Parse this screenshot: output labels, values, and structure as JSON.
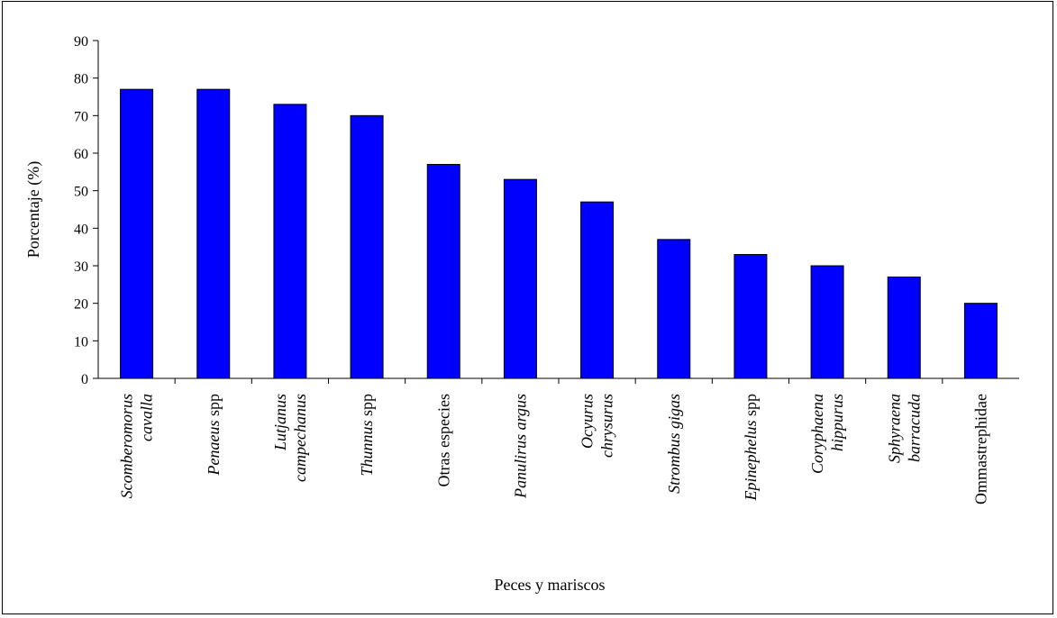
{
  "chart_data": {
    "type": "bar",
    "categories": [
      {
        "lines": [
          {
            "parts": [
              {
                "text": "Scomberomorus",
                "italic": true
              }
            ]
          },
          {
            "parts": [
              {
                "text": "cavalla",
                "italic": true
              }
            ]
          }
        ]
      },
      {
        "lines": [
          {
            "parts": [
              {
                "text": "Penaeus",
                "italic": true
              },
              {
                "text": " spp",
                "italic": false
              }
            ]
          }
        ]
      },
      {
        "lines": [
          {
            "parts": [
              {
                "text": "Lutjanus",
                "italic": true
              }
            ]
          },
          {
            "parts": [
              {
                "text": "campechanus",
                "italic": true
              }
            ]
          }
        ]
      },
      {
        "lines": [
          {
            "parts": [
              {
                "text": "Thunnus",
                "italic": true
              },
              {
                "text": " spp",
                "italic": false
              }
            ]
          }
        ]
      },
      {
        "lines": [
          {
            "parts": [
              {
                "text": "Otras especies",
                "italic": false
              }
            ]
          }
        ]
      },
      {
        "lines": [
          {
            "parts": [
              {
                "text": "Panulirus argus",
                "italic": true
              }
            ]
          }
        ]
      },
      {
        "lines": [
          {
            "parts": [
              {
                "text": "Ocyurus",
                "italic": true
              }
            ]
          },
          {
            "parts": [
              {
                "text": "chrysurus",
                "italic": true
              }
            ]
          }
        ]
      },
      {
        "lines": [
          {
            "parts": [
              {
                "text": "Strombus gigas",
                "italic": true
              }
            ]
          }
        ]
      },
      {
        "lines": [
          {
            "parts": [
              {
                "text": "Epinephelus",
                "italic": true
              },
              {
                "text": " spp",
                "italic": false
              }
            ]
          }
        ]
      },
      {
        "lines": [
          {
            "parts": [
              {
                "text": "Coryphaena",
                "italic": true
              }
            ]
          },
          {
            "parts": [
              {
                "text": "hippurus",
                "italic": true
              }
            ]
          }
        ]
      },
      {
        "lines": [
          {
            "parts": [
              {
                "text": "Sphyraena",
                "italic": true
              }
            ]
          },
          {
            "parts": [
              {
                "text": "barracuda",
                "italic": true
              }
            ]
          }
        ]
      },
      {
        "lines": [
          {
            "parts": [
              {
                "text": "Ommastrephidae",
                "italic": false
              }
            ]
          }
        ]
      }
    ],
    "values": [
      77,
      77,
      73,
      70,
      57,
      53,
      47,
      37,
      33,
      30,
      27,
      20
    ],
    "title": "",
    "xlabel": "Peces y mariscos",
    "ylabel": "Porcentaje (%)",
    "ylim": [
      0,
      90
    ],
    "yticks": [
      0,
      10,
      20,
      30,
      40,
      50,
      60,
      70,
      80,
      90
    ],
    "grid": false,
    "legend": "none",
    "bar_color": "#0000FF",
    "bar_edge_color": "#000000"
  }
}
